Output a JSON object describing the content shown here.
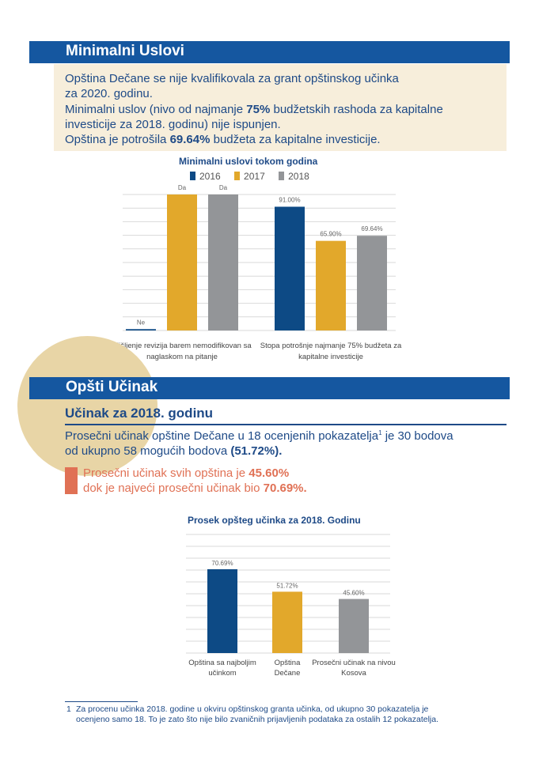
{
  "section1": {
    "title": "Minimalni Uslovi",
    "line1": "Opština Dečane se nije kvalifikovala za grant opštinskog učinka",
    "line2": "za 2020. godinu.",
    "line3_pre": "Minimalni uslov (nivo od najmanje ",
    "line3_bold": "75%",
    "line3_post": " budžetskih rashoda za kapitalne",
    "line4": "investicije za 2018. godinu) nije ispunjen.",
    "line5_pre": "Opština je potrošila ",
    "line5_bold": "69.64%",
    "line5_post": " budžeta za kapitalne investicije."
  },
  "section2": {
    "title": "Opšti Učinak",
    "subtitle": "Učinak za 2018. godinu",
    "line1_pre": "Prosečni učinak opštine Dečane u 18 ocenjenih pokazatelja",
    "line1_sup": "1",
    "line1_post": " je 30 bodova",
    "line2_pre": "od ukupno 58 mogućih bodova ",
    "line2_bold": "(51.72%).",
    "accent1_pre": "Prosečni učinak svih opština je ",
    "accent1_bold": "45.60%",
    "accent2_pre": "dok je najveći prosečni učinak bio ",
    "accent2_bold": "70.69%."
  },
  "footnote": {
    "number": "1",
    "line1": "Za procenu učinka 2018. godine u okviru opštinskog granta učinka, od ukupno 30 pokazatelja je",
    "line2": "ocenjeno samo 18. To je zato što nije bilo zvaničnih prijavljenih podataka za ostalih 12 pokazatelja."
  },
  "colors": {
    "y2016": "#0d4a85",
    "y2017": "#e2a82b",
    "y2018": "#939598",
    "accent": "#e07155",
    "banner": "#1557a0"
  },
  "chart_data": [
    {
      "type": "bar",
      "title": "Minimalni uslovi tokom godina",
      "legend_position": "top",
      "categories": [
        [
          "Mišljenje revizija barem nemodifikovan sa",
          "naglaskom na pitanje"
        ],
        [
          "Stopa potrošnje najmanje 75% budžeta za",
          "kapitalne investicije"
        ]
      ],
      "series": [
        {
          "name": "2016",
          "values": [
            1,
            91.0
          ],
          "labels": [
            "Ne",
            "91.00%"
          ]
        },
        {
          "name": "2017",
          "values": [
            100,
            65.9
          ],
          "labels": [
            "Da",
            "65.90%"
          ]
        },
        {
          "name": "2018",
          "values": [
            100,
            69.64
          ],
          "labels": [
            "Da",
            "69.64%"
          ]
        }
      ],
      "ylim": [
        0,
        100
      ],
      "grid": true
    },
    {
      "type": "bar",
      "title": "Prosek opšteg učinka za 2018. Godinu",
      "categories": [
        [
          "Opština sa najboljim",
          "učinkom"
        ],
        [
          "Opština",
          "Dečane"
        ],
        [
          "Prosečni učinak na nivou",
          "Kosova"
        ]
      ],
      "values": [
        70.69,
        51.72,
        45.6
      ],
      "labels": [
        "70.69%",
        "51.72%",
        "45.60%"
      ],
      "ylim": [
        0,
        100
      ],
      "grid": true
    }
  ]
}
